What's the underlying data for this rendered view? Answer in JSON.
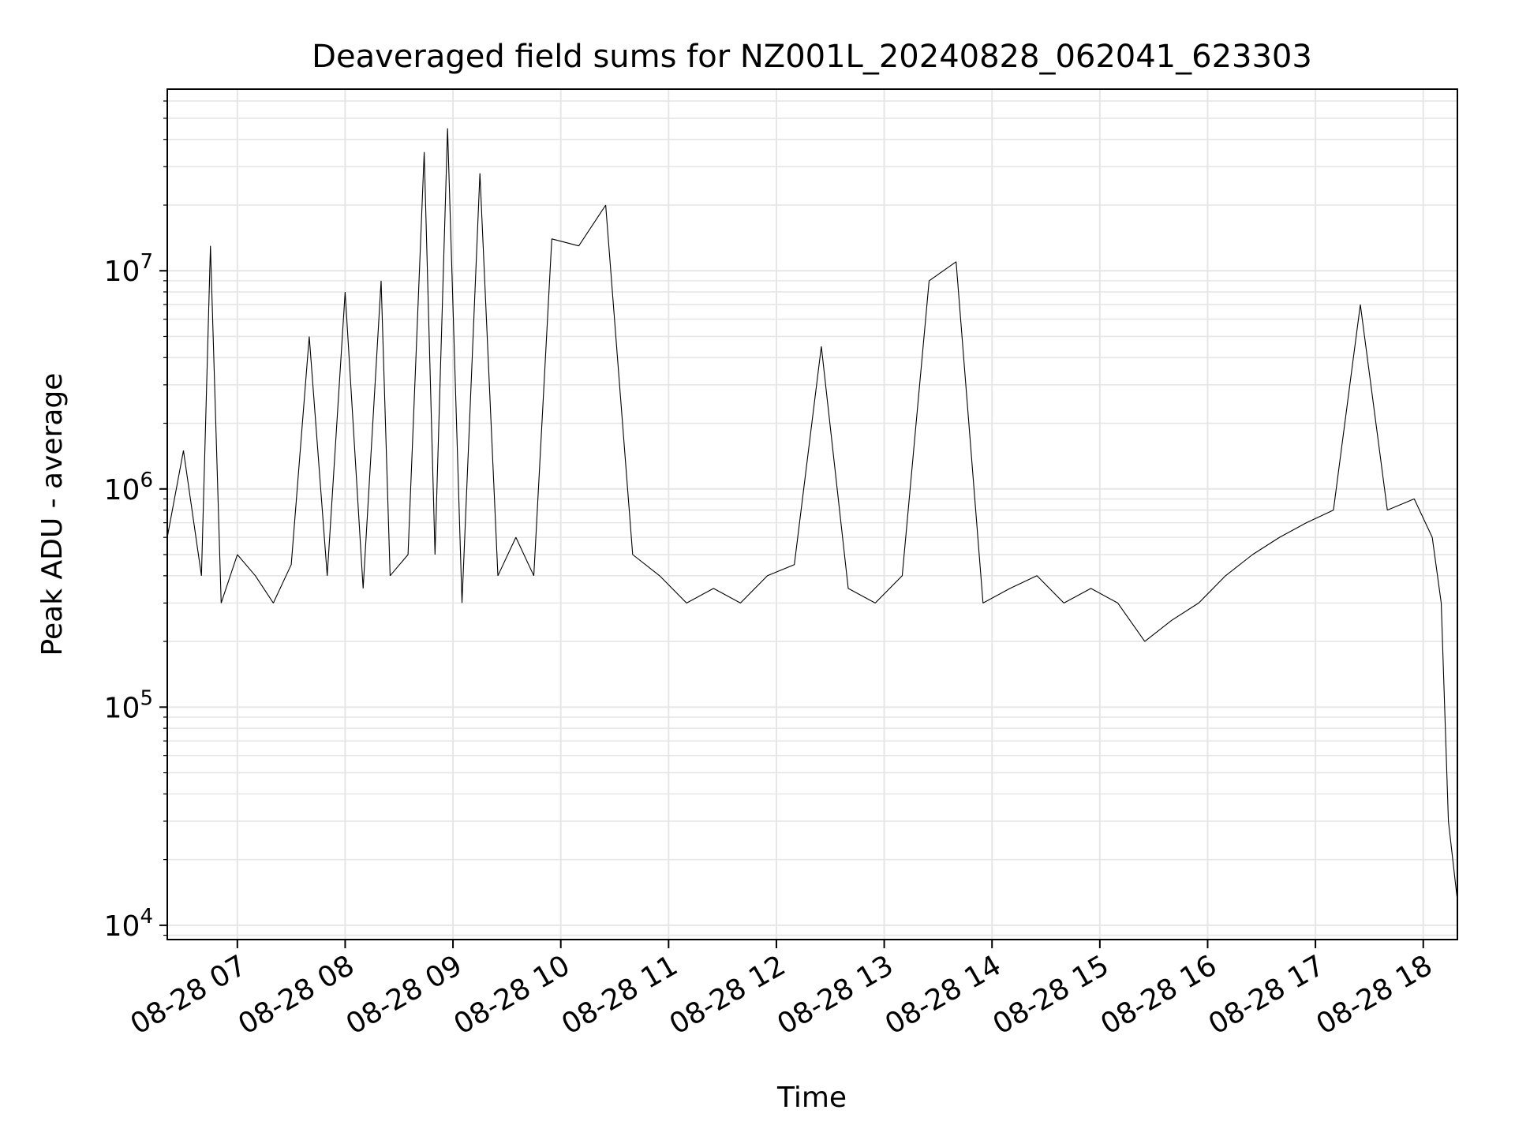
{
  "chart_data": {
    "type": "line",
    "title": "Deaveraged field sums for NZ001L_20240828_062041_623303",
    "xlabel": "Time",
    "ylabel": "Peak ADU - average",
    "x_range": [
      "2024-08-28 06:21",
      "2024-08-28 18:19"
    ],
    "y_scale": "log",
    "ylim": [
      8600,
      68000000
    ],
    "grid": true,
    "x_ticks": [
      "08-28 07",
      "08-28 08",
      "08-28 09",
      "08-28 10",
      "08-28 11",
      "08-28 12",
      "08-28 13",
      "08-28 14",
      "08-28 15",
      "08-28 16",
      "08-28 17",
      "08-28 18"
    ],
    "y_ticks": [
      {
        "value": 10000,
        "base": "10",
        "exp": "4"
      },
      {
        "value": 100000,
        "base": "10",
        "exp": "5"
      },
      {
        "value": 1000000,
        "base": "10",
        "exp": "6"
      },
      {
        "value": 10000000,
        "base": "10",
        "exp": "7"
      }
    ],
    "line_color": "#000000",
    "grid_color": "#e6e6e6",
    "series": [
      {
        "x": [
          "2024-08-28 06:21",
          "2024-08-28 06:30",
          "2024-08-28 06:40",
          "2024-08-28 06:45",
          "2024-08-28 06:51",
          "2024-08-28 07:00",
          "2024-08-28 07:10",
          "2024-08-28 07:20",
          "2024-08-28 07:30",
          "2024-08-28 07:40",
          "2024-08-28 07:50",
          "2024-08-28 08:00",
          "2024-08-28 08:10",
          "2024-08-28 08:20",
          "2024-08-28 08:25",
          "2024-08-28 08:35",
          "2024-08-28 08:44",
          "2024-08-28 08:50",
          "2024-08-28 08:57",
          "2024-08-28 09:05",
          "2024-08-28 09:15",
          "2024-08-28 09:25",
          "2024-08-28 09:35",
          "2024-08-28 09:45",
          "2024-08-28 09:55",
          "2024-08-28 10:10",
          "2024-08-28 10:25",
          "2024-08-28 10:40",
          "2024-08-28 10:55",
          "2024-08-28 11:10",
          "2024-08-28 11:25",
          "2024-08-28 11:40",
          "2024-08-28 11:55",
          "2024-08-28 12:10",
          "2024-08-28 12:25",
          "2024-08-28 12:40",
          "2024-08-28 12:55",
          "2024-08-28 13:10",
          "2024-08-28 13:25",
          "2024-08-28 13:40",
          "2024-08-28 13:55",
          "2024-08-28 14:10",
          "2024-08-28 14:25",
          "2024-08-28 14:40",
          "2024-08-28 14:55",
          "2024-08-28 15:10",
          "2024-08-28 15:25",
          "2024-08-28 15:40",
          "2024-08-28 15:55",
          "2024-08-28 16:10",
          "2024-08-28 16:25",
          "2024-08-28 16:40",
          "2024-08-28 16:55",
          "2024-08-28 17:10",
          "2024-08-28 17:25",
          "2024-08-28 17:40",
          "2024-08-28 17:55",
          "2024-08-28 18:05",
          "2024-08-28 18:10",
          "2024-08-28 18:14",
          "2024-08-28 18:19"
        ],
        "y": [
          600000,
          1500000,
          400000,
          13000000,
          300000,
          500000,
          400000,
          300000,
          450000,
          5000000,
          400000,
          8000000,
          350000,
          9000000,
          400000,
          500000,
          35000000,
          500000,
          45000000,
          300000,
          28000000,
          400000,
          600000,
          400000,
          14000000,
          13000000,
          20000000,
          500000,
          400000,
          300000,
          350000,
          300000,
          400000,
          450000,
          4500000,
          350000,
          300000,
          400000,
          9000000,
          11000000,
          300000,
          350000,
          400000,
          300000,
          350000,
          300000,
          200000,
          250000,
          300000,
          400000,
          500000,
          600000,
          700000,
          800000,
          7000000,
          800000,
          900000,
          600000,
          300000,
          30000,
          13000
        ]
      }
    ]
  }
}
